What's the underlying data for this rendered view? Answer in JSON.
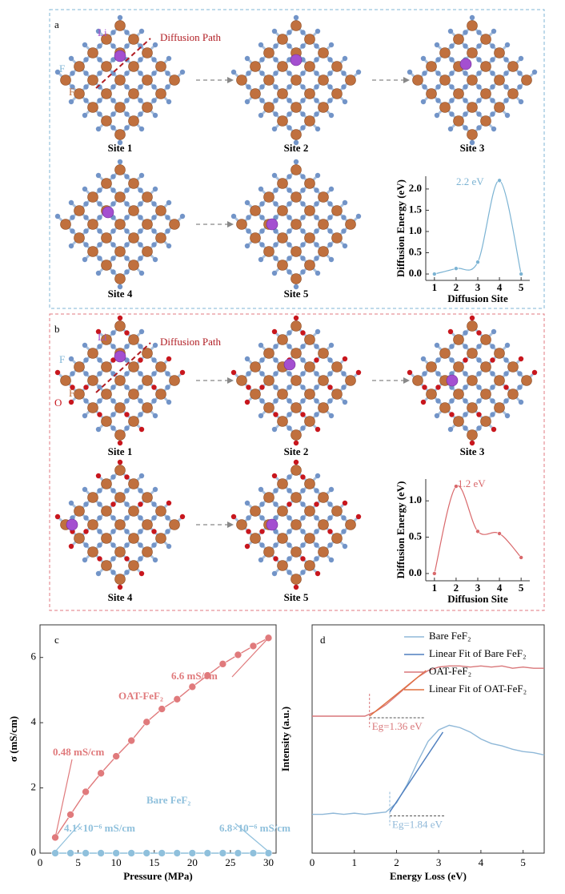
{
  "panels": [
    {
      "label": "a",
      "atoms": [
        "Li",
        "F",
        "Fe"
      ],
      "path_label": "Diffusion Path",
      "sites": [
        "Site 1",
        "Site 2",
        "Site 3",
        "Site 4",
        "Site 5"
      ]
    },
    {
      "label": "b",
      "atoms": [
        "Li",
        "F",
        "O",
        "Fe"
      ],
      "path_label": "Diffusion Path",
      "sites": [
        "Site 1",
        "Site 2",
        "Site 3",
        "Site 4",
        "Site 5"
      ]
    }
  ],
  "chart_data": [
    {
      "type": "line",
      "smooth": true,
      "markers": true,
      "x": [
        1,
        2,
        3,
        4,
        5
      ],
      "values": [
        0,
        0.13,
        0.28,
        2.2,
        0
      ],
      "color": "#7bb3d3",
      "xlim": [
        0.6,
        5.4
      ],
      "xticks": [
        1,
        2,
        3,
        4,
        5
      ],
      "ylim": [
        -0.15,
        2.3
      ],
      "yticks": [
        {
          "value": 0,
          "label": "0.0"
        },
        0.5,
        {
          "value": 1,
          "label": "1.0"
        },
        1.5,
        {
          "value": 2,
          "label": "2.0"
        }
      ],
      "xlabel": "Diffusion Site",
      "ylabel": "Diffusion Energy (eV)",
      "annotations": [
        "2.2 eV"
      ]
    },
    {
      "type": "line",
      "smooth": true,
      "markers": true,
      "x": [
        1,
        2,
        3,
        4,
        5
      ],
      "values": [
        0,
        1.2,
        0.58,
        0.55,
        0.22
      ],
      "color": "#d9686b",
      "xlim": [
        0.6,
        5.4
      ],
      "xticks": [
        1,
        2,
        3,
        4,
        5
      ],
      "ylim": [
        -0.1,
        1.3
      ],
      "yticks": [
        {
          "value": 0,
          "label": "0.0"
        },
        0.5,
        {
          "value": 1,
          "label": "1.0"
        }
      ],
      "xlabel": "Diffusion Site",
      "ylabel": "Diffusion Energy (eV)",
      "annotations": [
        "1.2 eV"
      ]
    },
    {
      "type": "line",
      "title": "c",
      "markers": true,
      "frame": true,
      "x": [
        2,
        4,
        6,
        8,
        10,
        12,
        14,
        16,
        18,
        20,
        22,
        24,
        26,
        28,
        30
      ],
      "series": [
        {
          "name": "OAT-FeF₂",
          "color": "#e07a7c",
          "values": [
            0.48,
            1.18,
            1.88,
            2.45,
            2.97,
            3.45,
            4.02,
            4.42,
            4.72,
            5.1,
            5.45,
            5.8,
            6.08,
            6.35,
            6.6
          ]
        },
        {
          "name": "Bare FeF₂",
          "color": "#8fc0dc",
          "values": [
            4.1e-06,
            4.3e-06,
            4.5e-06,
            4.7e-06,
            4.9e-06,
            5.1e-06,
            5.3e-06,
            5.5e-06,
            5.7e-06,
            5.9e-06,
            6.1e-06,
            6.3e-06,
            6.5e-06,
            6.6e-06,
            6.8e-06
          ]
        }
      ],
      "xlim": [
        0,
        31
      ],
      "xticks": [
        0,
        5,
        10,
        15,
        20,
        25,
        30
      ],
      "ylim": [
        0,
        7
      ],
      "yticks": [
        0,
        2,
        4,
        6
      ],
      "xlabel": "Pressure (MPa)",
      "ylabel": "σ (mS/cm)",
      "annotations": [
        "6.6 mS/cm",
        "0.48 mS/cm",
        "4.1×10⁻⁶ mS/cm",
        "6.8×10⁻⁶ mS/cm"
      ]
    },
    {
      "type": "line",
      "title": "d",
      "frame": true,
      "x": [
        0,
        0.25,
        0.5,
        0.75,
        1,
        1.25,
        1.5,
        1.75,
        2,
        2.25,
        2.5,
        2.75,
        3,
        3.25,
        3.5,
        3.75,
        4,
        4.25,
        4.5,
        4.75,
        5,
        5.25,
        5.5
      ],
      "series": [
        {
          "name": "Bare FeF₂",
          "color": "#8fb8d8",
          "values": [
            0.17,
            0.17,
            0.175,
            0.17,
            0.175,
            0.17,
            0.175,
            0.18,
            0.22,
            0.3,
            0.4,
            0.49,
            0.54,
            0.56,
            0.55,
            0.53,
            0.5,
            0.48,
            0.47,
            0.455,
            0.445,
            0.44,
            0.43
          ]
        },
        {
          "name": "Linear Fit of Bare FeF₂",
          "color": "#4f7fbf",
          "x": [
            1.84,
            3.1
          ],
          "values": [
            0.18,
            0.53
          ]
        },
        {
          "name": "OAT-FeF₂",
          "color": "#d9777a",
          "values": [
            0.6,
            0.6,
            0.6,
            0.6,
            0.6,
            0.6,
            0.62,
            0.65,
            0.69,
            0.73,
            0.77,
            0.8,
            0.815,
            0.82,
            0.82,
            0.815,
            0.82,
            0.815,
            0.82,
            0.81,
            0.815,
            0.81,
            0.81
          ]
        },
        {
          "name": "Linear Fit of OAT-FeF₂",
          "color": "#e0703f",
          "x": [
            1.36,
            2.7
          ],
          "values": [
            0.6,
            0.8
          ]
        }
      ],
      "xlim": [
        0,
        5.5
      ],
      "xticks": [
        0,
        1,
        2,
        3,
        4,
        5
      ],
      "ylim": [
        0,
        1
      ],
      "xlabel": "Energy Loss (eV)",
      "ylabel": "Intensity (a.u.)",
      "band_gaps": [
        {
          "label": "Eg=1.36 eV",
          "value": 1.36
        },
        {
          "label": "Eg=1.84 eV",
          "value": 1.84
        }
      ]
    }
  ]
}
